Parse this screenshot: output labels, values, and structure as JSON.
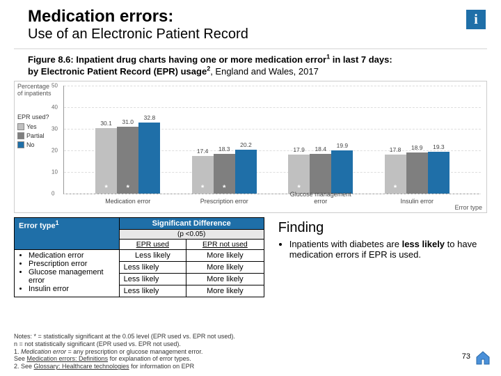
{
  "header": {
    "title1": "Medication errors:",
    "title2": "Use of an Electronic Patient Record",
    "info": "i"
  },
  "figure_caption": {
    "line1_a": "Figure 8.6: Inpatient drug charts having one or more medication error",
    "line1_sup": "1",
    "line1_b": " in last 7 days:",
    "line2_a": "by Electronic Patient Record (EPR) usage",
    "line2_sup": "2",
    "line2_b": ", England and Wales, 2017"
  },
  "chart": {
    "type": "bar",
    "ylabel": "Percentage of inpatients",
    "xlabel": "Error type",
    "ylim": [
      0,
      50
    ],
    "ytick_step": 10,
    "grid_color": "#dddddd",
    "legend_title": "EPR used?",
    "series": [
      {
        "name": "Yes",
        "color": "#c0c0c0"
      },
      {
        "name": "Partial",
        "color": "#7f7f7f"
      },
      {
        "name": "No",
        "color": "#1f6fa8"
      }
    ],
    "categories": [
      "Medication error",
      "Prescription error",
      "Glucose management error",
      "Insulin error"
    ],
    "values": [
      [
        30.1,
        31.0,
        32.8
      ],
      [
        17.4,
        18.3,
        20.2
      ],
      [
        17.9,
        18.4,
        19.9
      ],
      [
        17.8,
        18.9,
        19.3
      ]
    ],
    "stars": [
      [
        true,
        true,
        false
      ],
      [
        true,
        true,
        false
      ],
      [
        true,
        false,
        false
      ],
      [
        true,
        false,
        false
      ]
    ],
    "bar_width_pct": 5.2,
    "group_gap_pct": 2.0
  },
  "table": {
    "header_left": "Error type",
    "header_sup": "1",
    "header_right": "Significant Difference",
    "sub": "(p <0.05)",
    "col1": "EPR used",
    "col2": "EPR not used",
    "rows": [
      {
        "label": "Medication error",
        "c1": "Less likely",
        "c2": "More likely"
      },
      {
        "label": "Prescription error",
        "c1": "Less likely",
        "c2": "More likely"
      },
      {
        "label": "Glucose management error",
        "c1": "Less likely",
        "c2": "More likely"
      },
      {
        "label": "Insulin error",
        "c1": "Less likely",
        "c2": "More likely"
      }
    ]
  },
  "finding": {
    "title": "Finding",
    "bullet_a": "Inpatients with diabetes are ",
    "bullet_b": "less likely",
    "bullet_c": " to have medication errors if EPR is used."
  },
  "notes": {
    "l1": "Notes: * = statistically significant at the 0.05 level (EPR used vs. EPR not used).",
    "l2": "n = not statistically significant (EPR used vs. EPR not used).",
    "l3_a": "1. ",
    "l3_b": "Medication error",
    "l3_c": " = any prescription or glucose management error.",
    "l4_a": "See ",
    "l4_b": "Medication errors: Definitions",
    "l4_c": " for explanation of error types.",
    "l5_a": "2. See ",
    "l5_b": "Glossary: Healthcare technologies",
    "l5_c": " for information on EPR"
  },
  "pagenum": "73"
}
